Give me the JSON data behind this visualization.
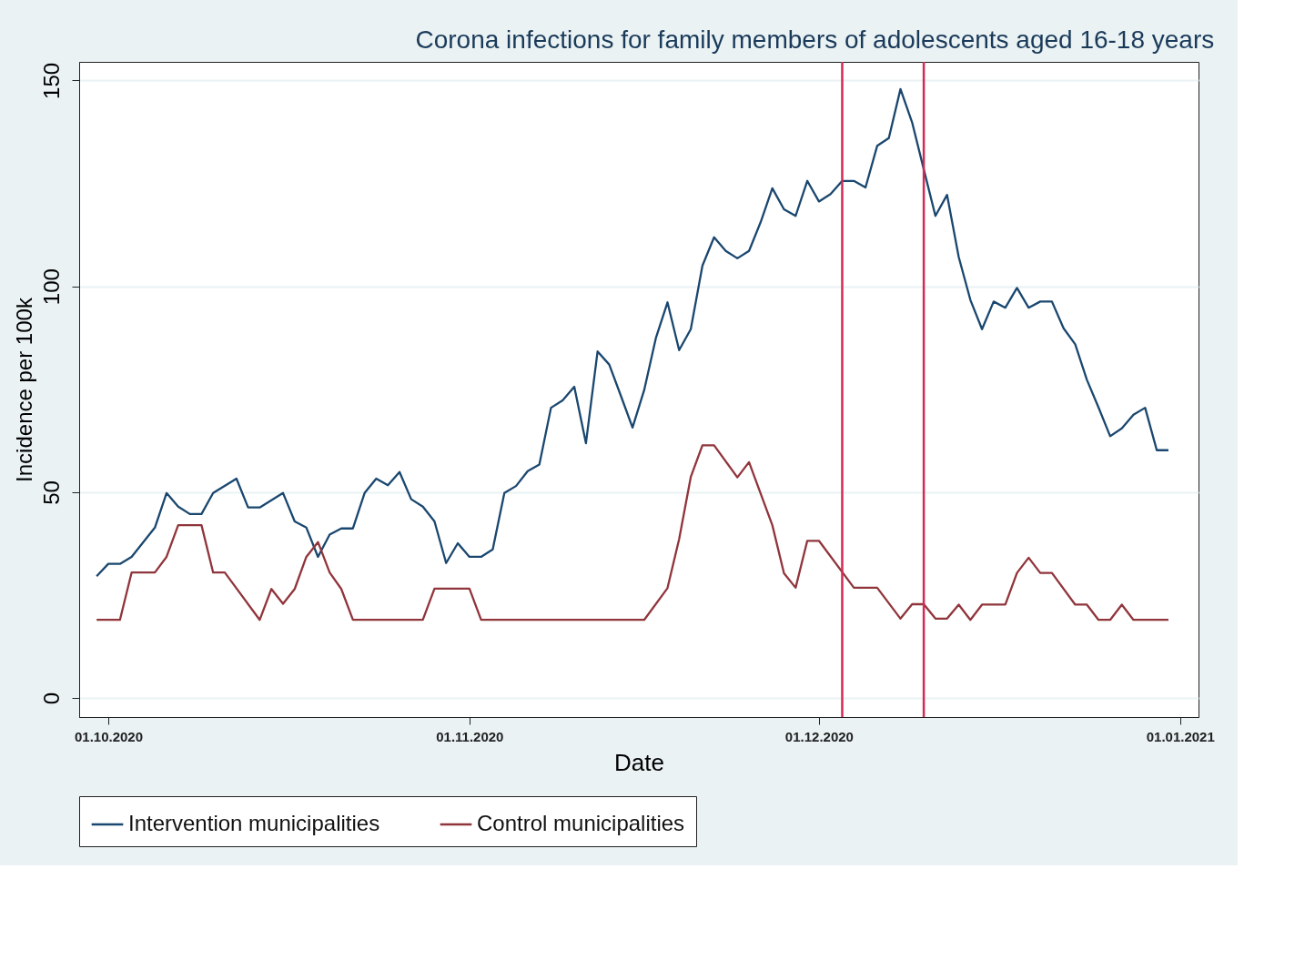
{
  "chart_data": {
    "type": "line",
    "title": "Corona infections for family members of adolescents aged 16-18 years",
    "xlabel": "Date",
    "ylabel": "Incidence per 100k",
    "xlim": [
      "2020-09-28T12:00",
      "2021-01-02T14:00"
    ],
    "ylim": [
      -4.6,
      154.5
    ],
    "xticks": [
      {
        "value": "2020-10-01",
        "label": "01.10.2020"
      },
      {
        "value": "2020-11-01",
        "label": "01.11.2020"
      },
      {
        "value": "2020-12-01",
        "label": "01.12.2020"
      },
      {
        "value": "2021-01-01",
        "label": "01.01.2021"
      }
    ],
    "yticks": [
      0,
      50,
      100,
      150
    ],
    "grid": "y",
    "legend": "bottom",
    "marker": "none",
    "line_style": "solid",
    "ref_lines": [
      {
        "axis": "x",
        "value": "2020-12-03",
        "color": "#d42a55"
      },
      {
        "axis": "x",
        "value": "2020-12-10",
        "color": "#d42a55"
      }
    ],
    "series": [
      {
        "name": "Intervention municipalities",
        "color": "#1a476f",
        "x": [
          "2020-09-30",
          "2020-10-01",
          "2020-10-02",
          "2020-10-03",
          "2020-10-05",
          "2020-10-06",
          "2020-10-07",
          "2020-10-08",
          "2020-10-09",
          "2020-10-10",
          "2020-10-12",
          "2020-10-13",
          "2020-10-14",
          "2020-10-16",
          "2020-10-17",
          "2020-10-18",
          "2020-10-19",
          "2020-10-20",
          "2020-10-21",
          "2020-10-22",
          "2020-10-23",
          "2020-10-24",
          "2020-10-25",
          "2020-10-26",
          "2020-10-27",
          "2020-10-28",
          "2020-10-29",
          "2020-10-30",
          "2020-10-31",
          "2020-11-01",
          "2020-11-02",
          "2020-11-03",
          "2020-11-04",
          "2020-11-05",
          "2020-11-06",
          "2020-11-07",
          "2020-11-08",
          "2020-11-09",
          "2020-11-10",
          "2020-11-11",
          "2020-11-12",
          "2020-11-13",
          "2020-11-14",
          "2020-11-15",
          "2020-11-16",
          "2020-11-17",
          "2020-11-18",
          "2020-11-19",
          "2020-11-20",
          "2020-11-21",
          "2020-11-22",
          "2020-11-23",
          "2020-11-24",
          "2020-11-25",
          "2020-11-26",
          "2020-11-27",
          "2020-11-28",
          "2020-11-29",
          "2020-11-30",
          "2020-12-01",
          "2020-12-02",
          "2020-12-03",
          "2020-12-04",
          "2020-12-05",
          "2020-12-06",
          "2020-12-07",
          "2020-12-08",
          "2020-12-09",
          "2020-12-10",
          "2020-12-11",
          "2020-12-12",
          "2020-12-13",
          "2020-12-14",
          "2020-12-15",
          "2020-12-16",
          "2020-12-17",
          "2020-12-18",
          "2020-12-19",
          "2020-12-20",
          "2020-12-21",
          "2020-12-22",
          "2020-12-23",
          "2020-12-24",
          "2020-12-25",
          "2020-12-26",
          "2020-12-27",
          "2020-12-28",
          "2020-12-29",
          "2020-12-30",
          "2020-12-31"
        ],
        "values": [
          29.6,
          32.6,
          32.6,
          34.3,
          41.4,
          49.8,
          46.5,
          44.7,
          44.7,
          49.8,
          53.3,
          46.3,
          46.3,
          49.8,
          42.9,
          41.4,
          34.3,
          39.7,
          41.2,
          41.2,
          49.8,
          53.3,
          51.7,
          54.9,
          48.3,
          46.5,
          42.9,
          32.8,
          37.6,
          34.3,
          34.3,
          36.1,
          49.8,
          51.5,
          55.1,
          56.7,
          70.5,
          72.3,
          75.6,
          61.9,
          84.2,
          81.0,
          73.4,
          65.7,
          74.8,
          87.4,
          96.1,
          84.5,
          89.6,
          105.0,
          111.9,
          108.6,
          106.8,
          108.6,
          115.6,
          123.8,
          118.7,
          117.1,
          125.6,
          120.6,
          122.4,
          125.6,
          125.6,
          124.0,
          134.1,
          136.0,
          147.9,
          139.8,
          128.4,
          117.1,
          122.2,
          107.1,
          96.7,
          89.6,
          96.3,
          94.8,
          99.6,
          94.8,
          96.3,
          96.3,
          89.8,
          85.9,
          77.3,
          70.6,
          63.6,
          65.5,
          68.8,
          70.5,
          60.2,
          60.2
        ]
      },
      {
        "name": "Control municipalities",
        "color": "#90353b",
        "x": [
          "2020-09-30",
          "2020-10-02",
          "2020-10-03",
          "2020-10-05",
          "2020-10-06",
          "2020-10-07",
          "2020-10-09",
          "2020-10-10",
          "2020-10-11",
          "2020-10-14",
          "2020-10-15",
          "2020-10-16",
          "2020-10-17",
          "2020-10-18",
          "2020-10-19",
          "2020-10-20",
          "2020-10-21",
          "2020-10-22",
          "2020-10-28",
          "2020-10-29",
          "2020-11-01",
          "2020-11-02",
          "2020-11-16",
          "2020-11-18",
          "2020-11-19",
          "2020-11-20",
          "2020-11-21",
          "2020-11-22",
          "2020-11-24",
          "2020-11-25",
          "2020-11-27",
          "2020-11-28",
          "2020-11-29",
          "2020-11-30",
          "2020-12-01",
          "2020-12-04",
          "2020-12-06",
          "2020-12-08",
          "2020-12-09",
          "2020-12-10",
          "2020-12-11",
          "2020-12-12",
          "2020-12-13",
          "2020-12-14",
          "2020-12-15",
          "2020-12-17",
          "2020-12-18",
          "2020-12-19",
          "2020-12-20",
          "2020-12-21",
          "2020-12-23",
          "2020-12-24",
          "2020-12-25",
          "2020-12-26",
          "2020-12-27",
          "2020-12-28",
          "2020-12-31"
        ],
        "values": [
          19.0,
          19.0,
          30.5,
          30.5,
          34.3,
          42.0,
          42.0,
          30.5,
          30.5,
          19.0,
          26.5,
          22.9,
          26.5,
          34.3,
          37.9,
          30.5,
          26.5,
          19.0,
          19.0,
          26.6,
          26.6,
          19.0,
          19.0,
          26.7,
          38.6,
          53.7,
          61.4,
          61.4,
          53.6,
          57.3,
          42.0,
          30.3,
          26.8,
          38.2,
          38.2,
          26.8,
          26.8,
          19.3,
          22.8,
          22.8,
          19.3,
          19.3,
          22.7,
          19.0,
          22.7,
          22.7,
          30.4,
          34.1,
          30.4,
          30.4,
          22.7,
          22.7,
          19.0,
          19.0,
          22.7,
          19.0,
          19.0
        ]
      }
    ]
  }
}
